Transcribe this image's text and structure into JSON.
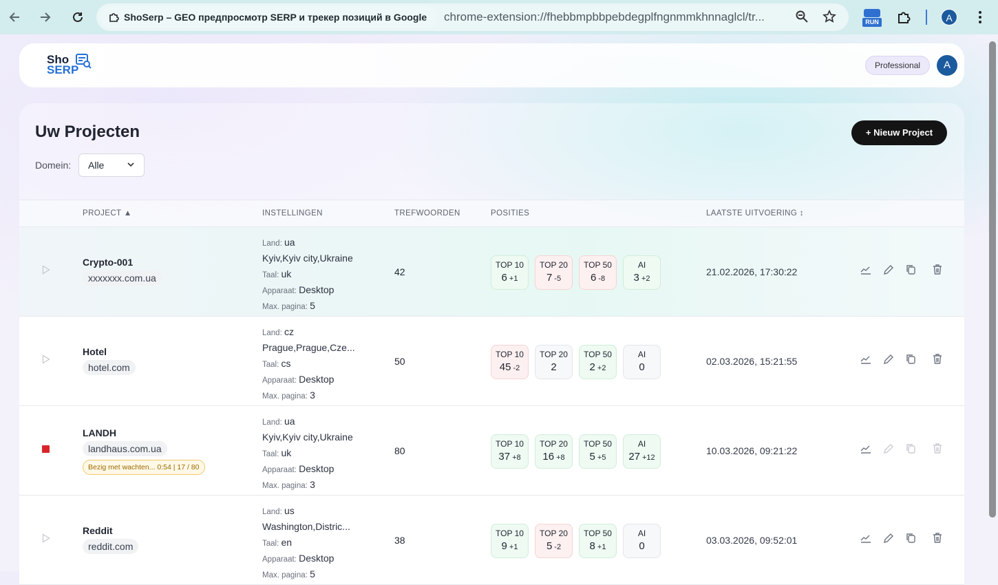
{
  "browser": {
    "tab_title": "ShoSerp – GEO предпросмотр SERP и трекер позиций в Google",
    "url": "chrome-extension://fhebbmpbbpebdegplfngnmmkhnnaglcl/tr...",
    "extension_badge": "RUN",
    "profile": "A"
  },
  "header": {
    "logo_line1": "Sho",
    "logo_line2": "SERP",
    "plan": "Professional",
    "avatar": "A"
  },
  "projects": {
    "title": "Uw Projecten",
    "new_button": "+ Nieuw Project",
    "filter_label": "Domein:",
    "filter_value": "Alle"
  },
  "table": {
    "columns": [
      "PROJECT ▲",
      "INSTELLINGEN",
      "TREFWOORDEN",
      "POSITIES",
      "LAATSTE UITVOERING ↕"
    ],
    "setting_labels": {
      "land": "Land:",
      "taal": "Taal:",
      "apparaat": "Apparaat:",
      "max_pagina": "Max. pagina:"
    },
    "rows": [
      {
        "name": "Crypto-001",
        "domain": "xxxxxxx.com.ua",
        "land": "ua",
        "location": "Kyiv,Kyiv city,Ukraine",
        "taal": "uk",
        "apparaat": "Desktop",
        "max_pagina": 5,
        "keywords": 42,
        "positions": [
          {
            "label": "TOP 10",
            "value": 6,
            "delta": "+1",
            "tone": "green"
          },
          {
            "label": "TOP 20",
            "value": 7,
            "delta": "-5",
            "tone": "red"
          },
          {
            "label": "TOP 50",
            "value": 6,
            "delta": "-8",
            "tone": "red"
          },
          {
            "label": "AI",
            "value": 3,
            "delta": "+2",
            "tone": "green"
          }
        ],
        "last_run": "21.02.2026, 17:30:22"
      },
      {
        "name": "Hotel",
        "domain": "hotel.com",
        "land": "cz",
        "location": "Prague,Prague,Cze...",
        "taal": "cs",
        "apparaat": "Desktop",
        "max_pagina": 3,
        "keywords": 50,
        "positions": [
          {
            "label": "TOP 10",
            "value": 45,
            "delta": "-2",
            "tone": "red"
          },
          {
            "label": "TOP 20",
            "value": 2,
            "tone": "gray"
          },
          {
            "label": "TOP 50",
            "value": 2,
            "delta": "+2",
            "tone": "green"
          },
          {
            "label": "AI",
            "value": 0,
            "tone": "gray"
          }
        ],
        "last_run": "02.03.2026, 15:21:55"
      },
      {
        "name": "LANDH",
        "domain": "landhaus.com.ua",
        "status": "Bezig met wachten... 0:54  |  17 / 80",
        "land": "ua",
        "location": "Kyiv,Kyiv city,Ukraine",
        "taal": "uk",
        "apparaat": "Desktop",
        "max_pagina": 3,
        "keywords": 80,
        "positions": [
          {
            "label": "TOP 10",
            "value": 37,
            "delta": "+8",
            "tone": "green"
          },
          {
            "label": "TOP 20",
            "value": 16,
            "delta": "+8",
            "tone": "green"
          },
          {
            "label": "TOP 50",
            "value": 5,
            "delta": "+5",
            "tone": "green"
          },
          {
            "label": "AI",
            "value": 27,
            "delta": "+12",
            "tone": "green"
          }
        ],
        "last_run": "10.03.2026, 09:21:22"
      },
      {
        "name": "Reddit",
        "domain": "reddit.com",
        "land": "us",
        "location": "Washington,Distric...",
        "taal": "en",
        "apparaat": "Desktop",
        "max_pagina": 5,
        "keywords": 38,
        "positions": [
          {
            "label": "TOP 10",
            "value": 9,
            "delta": "+1",
            "tone": "green"
          },
          {
            "label": "TOP 20",
            "value": 5,
            "delta": "-2",
            "tone": "red"
          },
          {
            "label": "TOP 50",
            "value": 8,
            "delta": "+1",
            "tone": "green"
          },
          {
            "label": "AI",
            "value": 0,
            "tone": "gray"
          }
        ],
        "last_run": "03.03.2026, 09:52:01"
      }
    ]
  }
}
